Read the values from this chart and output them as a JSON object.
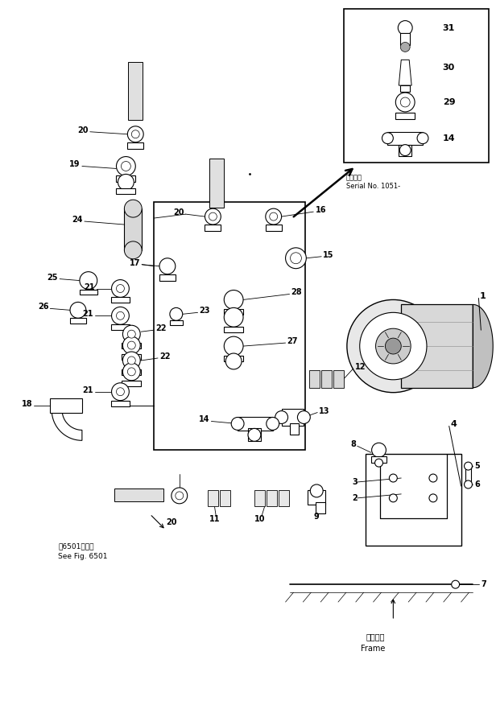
{
  "bg": "#ffffff",
  "fw": 6.16,
  "fh": 8.81,
  "dpi": 100,
  "serial": "適用車輌\nSerial No. 1051-",
  "frame_ja": "フレーム",
  "frame_en": "Frame",
  "ref_ja": "第6501図参照",
  "ref_en": "See Fig. 6501"
}
